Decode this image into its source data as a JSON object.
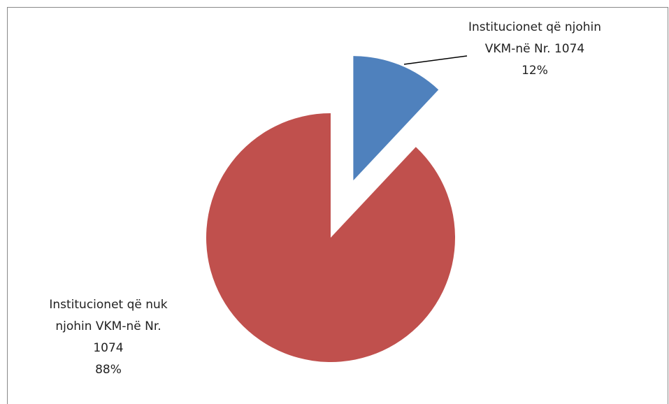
{
  "chart_data": {
    "type": "pie",
    "categories": [
      "Institucionet që njohin VKM-në Nr. 1074",
      "Institucionet që nuk njohin VKM-në Nr. 1074"
    ],
    "values": [
      12,
      88
    ],
    "value_labels": [
      "12%",
      "88%"
    ],
    "colors": [
      "#4f81bd",
      "#c0504d"
    ],
    "exploded": [
      true,
      false
    ]
  }
}
